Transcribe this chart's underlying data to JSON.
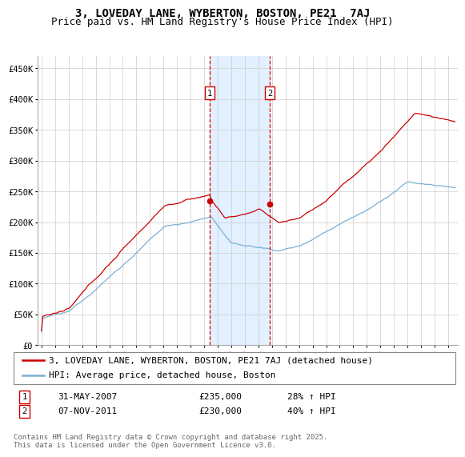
{
  "title": "3, LOVEDAY LANE, WYBERTON, BOSTON, PE21  7AJ",
  "subtitle": "Price paid vs. HM Land Registry's House Price Index (HPI)",
  "ylabel_ticks": [
    "£0",
    "£50K",
    "£100K",
    "£150K",
    "£200K",
    "£250K",
    "£300K",
    "£350K",
    "£400K",
    "£450K"
  ],
  "y_values": [
    0,
    50000,
    100000,
    150000,
    200000,
    250000,
    300000,
    350000,
    400000,
    450000
  ],
  "ylim": [
    0,
    470000
  ],
  "xlim_start": 1994.7,
  "xlim_end": 2025.7,
  "marker1_x": 2007.42,
  "marker1_y": 235000,
  "marker2_x": 2011.85,
  "marker2_y": 230000,
  "line1_color": "#cc0000",
  "line2_color": "#7aafd4",
  "shade_color": "#ddeeff",
  "grid_color": "#cccccc",
  "background_color": "#ffffff",
  "legend1_label": "3, LOVEDAY LANE, WYBERTON, BOSTON, PE21 7AJ (detached house)",
  "legend2_label": "HPI: Average price, detached house, Boston",
  "marker1_date": "31-MAY-2007",
  "marker1_price": "£235,000",
  "marker1_hpi": "28% ↑ HPI",
  "marker2_date": "07-NOV-2011",
  "marker2_price": "£230,000",
  "marker2_hpi": "40% ↑ HPI",
  "footer": "Contains HM Land Registry data © Crown copyright and database right 2025.\nThis data is licensed under the Open Government Licence v3.0.",
  "title_fontsize": 10,
  "subtitle_fontsize": 9,
  "tick_fontsize": 7.5,
  "legend_fontsize": 8,
  "footer_fontsize": 6.5
}
